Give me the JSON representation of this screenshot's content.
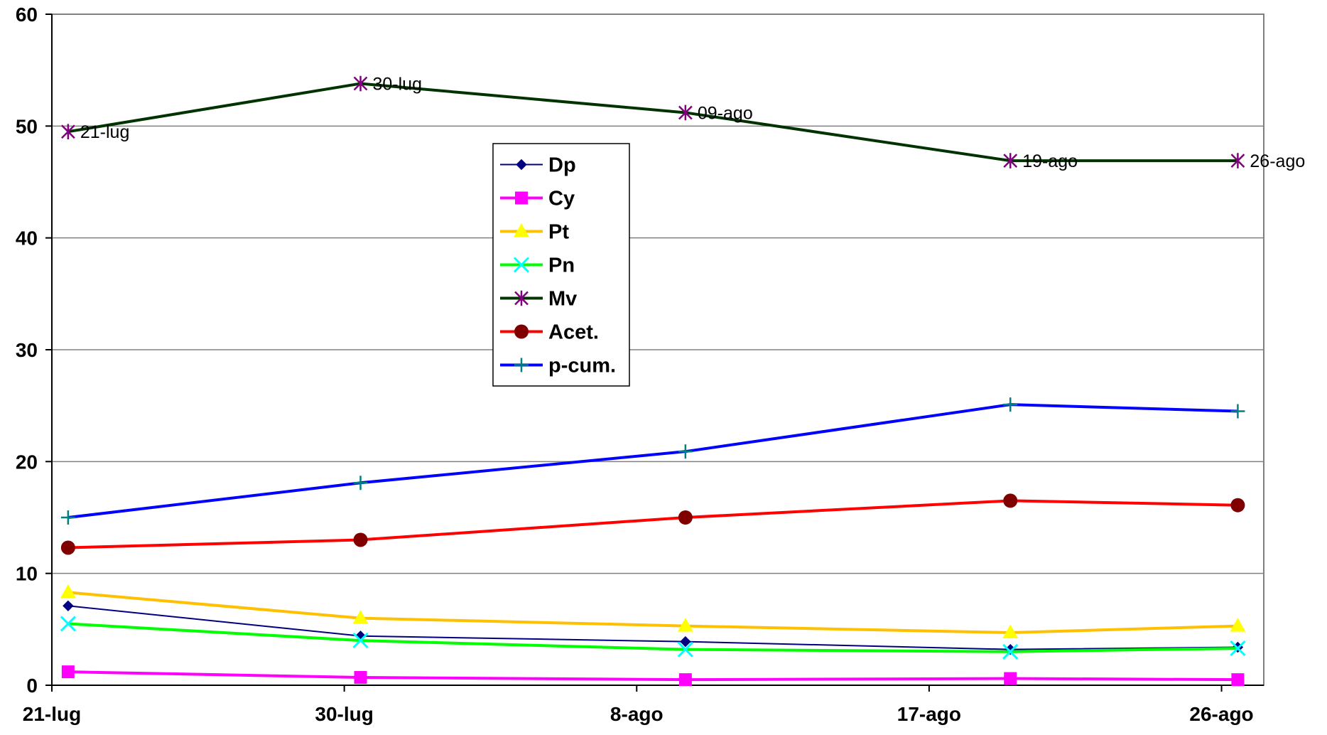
{
  "chart_data": {
    "type": "line",
    "title": "",
    "xlabel": "",
    "ylabel": "",
    "x_ticks": [
      "21-lug",
      "30-lug",
      "8-ago",
      "17-ago",
      "26-ago"
    ],
    "x_tick_days": [
      0,
      9,
      18,
      27,
      36
    ],
    "ylim": [
      0,
      60
    ],
    "y_ticks": [
      0,
      10,
      20,
      30,
      40,
      50,
      60
    ],
    "grid": "horizontal",
    "legend_position": "center-left",
    "x": [
      0.5,
      9.5,
      19.5,
      29.5,
      36.5
    ],
    "point_labels": [
      "21-lug",
      "30-lug",
      "09-ago",
      "19-ago",
      "26-ago"
    ],
    "point_label_series": "Mv",
    "series": [
      {
        "name": "Dp",
        "values": [
          7.1,
          4.4,
          3.9,
          3.2,
          3.4
        ],
        "color": "#000080",
        "marker": "diamond",
        "marker_color": "#000080",
        "line_width": 2
      },
      {
        "name": "Cy",
        "values": [
          1.2,
          0.7,
          0.5,
          0.6,
          0.5
        ],
        "color": "#FF00FF",
        "marker": "square",
        "marker_color": "#FF00FF",
        "line_width": 4
      },
      {
        "name": "Pt",
        "values": [
          8.3,
          6.0,
          5.3,
          4.7,
          5.3
        ],
        "color": "#FFC000",
        "marker": "triangle",
        "marker_color": "#FFFF00",
        "line_width": 4
      },
      {
        "name": "Pn",
        "values": [
          5.5,
          4.0,
          3.2,
          3.0,
          3.3
        ],
        "color": "#00FF00",
        "marker": "x",
        "marker_color": "#00FFFF",
        "line_width": 4
      },
      {
        "name": "Mv",
        "values": [
          49.5,
          53.8,
          51.2,
          46.9,
          46.9
        ],
        "color": "#003300",
        "marker": "star",
        "marker_color": "#800080",
        "line_width": 4
      },
      {
        "name": "Acet.",
        "values": [
          12.3,
          13.0,
          15.0,
          16.5,
          16.1
        ],
        "color": "#FF0000",
        "marker": "circle",
        "marker_color": "#800000",
        "line_width": 4
      },
      {
        "name": "p-cum.",
        "values": [
          15.0,
          18.1,
          20.9,
          25.1,
          24.5
        ],
        "color": "#0000FF",
        "marker": "plus",
        "marker_color": "#008080",
        "line_width": 4
      }
    ]
  }
}
